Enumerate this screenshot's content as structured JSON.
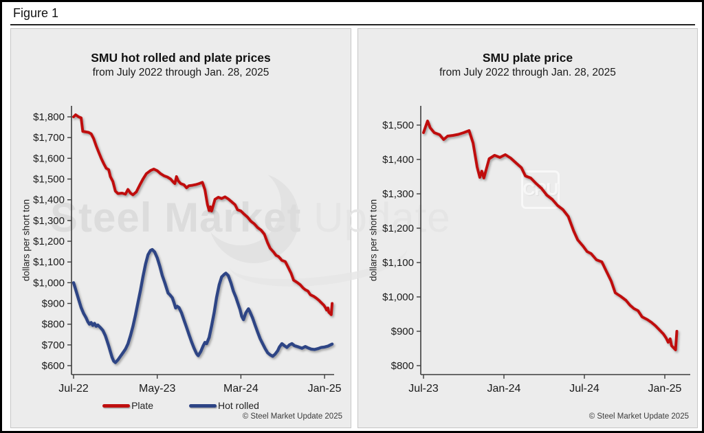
{
  "figure_label": "Figure 1",
  "watermark": {
    "text_primary": "Steel Market",
    "text_secondary": " Update",
    "badge": "CRU"
  },
  "colors": {
    "plate": "#bf0f0f",
    "hot_rolled": "#2d4485",
    "axis": "#3c3c3c",
    "panel_bg": "#ececec"
  },
  "chart_data": [
    {
      "type": "line",
      "title": "SMU hot rolled and plate prices",
      "subtitle": "from July 2022 through Jan. 28, 2025",
      "ylabel": "dollars per short ton",
      "copyright": "© Steel Market Update 2025",
      "x_unit": "months since Jul-2022",
      "x_tick_labels": [
        "Jul-22",
        "May-23",
        "Mar-24",
        "Jan-25"
      ],
      "x_tick_months": [
        0,
        10,
        20,
        30
      ],
      "ylim": [
        600,
        1800
      ],
      "y_tick_step": 100,
      "grid": false,
      "legend_position": "bottom",
      "series": [
        {
          "name": "Plate",
          "color": "#bf0f0f",
          "points": [
            [
              0,
              1800
            ],
            [
              0.25,
              1810
            ],
            [
              0.6,
              1800
            ],
            [
              0.9,
              1795
            ],
            [
              1.1,
              1730
            ],
            [
              1.8,
              1725
            ],
            [
              2.1,
              1718
            ],
            [
              2.4,
              1695
            ],
            [
              2.7,
              1660
            ],
            [
              3,
              1630
            ],
            [
              3.3,
              1600
            ],
            [
              3.6,
              1575
            ],
            [
              3.9,
              1552
            ],
            [
              4.2,
              1545
            ],
            [
              4.4,
              1512
            ],
            [
              4.7,
              1488
            ],
            [
              5,
              1442
            ],
            [
              5.3,
              1430
            ],
            [
              5.8,
              1432
            ],
            [
              6.2,
              1427
            ],
            [
              6.5,
              1450
            ],
            [
              6.8,
              1432
            ],
            [
              7.1,
              1424
            ],
            [
              7.5,
              1438
            ],
            [
              7.9,
              1470
            ],
            [
              8.3,
              1500
            ],
            [
              8.7,
              1526
            ],
            [
              9.2,
              1541
            ],
            [
              9.6,
              1548
            ],
            [
              10,
              1540
            ],
            [
              10.4,
              1526
            ],
            [
              10.8,
              1516
            ],
            [
              11.2,
              1510
            ],
            [
              11.6,
              1500
            ],
            [
              11.9,
              1486
            ],
            [
              12.1,
              1478
            ],
            [
              12.3,
              1512
            ],
            [
              12.5,
              1492
            ],
            [
              12.8,
              1478
            ],
            [
              13.2,
              1472
            ],
            [
              13.5,
              1458
            ],
            [
              13.8,
              1468
            ],
            [
              14.2,
              1470
            ],
            [
              14.6,
              1473
            ],
            [
              15,
              1478
            ],
            [
              15.4,
              1484
            ],
            [
              15.7,
              1448
            ],
            [
              16,
              1378
            ],
            [
              16.2,
              1348
            ],
            [
              16.35,
              1366
            ],
            [
              16.5,
              1346
            ],
            [
              16.9,
              1402
            ],
            [
              17.3,
              1412
            ],
            [
              17.7,
              1406
            ],
            [
              18.1,
              1414
            ],
            [
              18.5,
              1404
            ],
            [
              18.9,
              1390
            ],
            [
              19.3,
              1376
            ],
            [
              19.6,
              1352
            ],
            [
              20,
              1346
            ],
            [
              20.4,
              1330
            ],
            [
              20.8,
              1316
            ],
            [
              21.2,
              1296
            ],
            [
              21.6,
              1284
            ],
            [
              22,
              1266
            ],
            [
              22.4,
              1254
            ],
            [
              22.8,
              1234
            ],
            [
              23.2,
              1192
            ],
            [
              23.5,
              1166
            ],
            [
              23.9,
              1148
            ],
            [
              24.2,
              1132
            ],
            [
              24.5,
              1126
            ],
            [
              24.9,
              1108
            ],
            [
              25.3,
              1102
            ],
            [
              25.6,
              1078
            ],
            [
              26,
              1046
            ],
            [
              26.3,
              1012
            ],
            [
              26.7,
              1002
            ],
            [
              27.1,
              990
            ],
            [
              27.4,
              976
            ],
            [
              27.7,
              966
            ],
            [
              28,
              960
            ],
            [
              28.3,
              942
            ],
            [
              28.7,
              934
            ],
            [
              29,
              926
            ],
            [
              29.3,
              916
            ],
            [
              29.6,
              904
            ],
            [
              29.9,
              892
            ],
            [
              30.1,
              880
            ],
            [
              30.25,
              868
            ],
            [
              30.4,
              878
            ],
            [
              30.5,
              858
            ],
            [
              30.65,
              852
            ],
            [
              30.8,
              846
            ],
            [
              30.9,
              900
            ]
          ]
        },
        {
          "name": "Hot rolled",
          "color": "#2d4485",
          "points": [
            [
              0,
              1000
            ],
            [
              0.3,
              960
            ],
            [
              0.6,
              920
            ],
            [
              0.9,
              880
            ],
            [
              1.2,
              852
            ],
            [
              1.5,
              830
            ],
            [
              1.7,
              812
            ],
            [
              1.9,
              800
            ],
            [
              2.1,
              808
            ],
            [
              2.3,
              794
            ],
            [
              2.5,
              804
            ],
            [
              2.7,
              790
            ],
            [
              2.9,
              796
            ],
            [
              3.2,
              784
            ],
            [
              3.5,
              770
            ],
            [
              3.8,
              745
            ],
            [
              4,
              720
            ],
            [
              4.2,
              695
            ],
            [
              4.4,
              668
            ],
            [
              4.6,
              640
            ],
            [
              4.8,
              622
            ],
            [
              5,
              615
            ],
            [
              5.3,
              628
            ],
            [
              5.6,
              645
            ],
            [
              5.9,
              662
            ],
            [
              6.2,
              680
            ],
            [
              6.5,
              705
            ],
            [
              6.8,
              745
            ],
            [
              7.1,
              790
            ],
            [
              7.4,
              845
            ],
            [
              7.7,
              905
            ],
            [
              8,
              965
            ],
            [
              8.3,
              1030
            ],
            [
              8.6,
              1090
            ],
            [
              8.9,
              1135
            ],
            [
              9.2,
              1156
            ],
            [
              9.4,
              1160
            ],
            [
              9.7,
              1148
            ],
            [
              10,
              1120
            ],
            [
              10.3,
              1080
            ],
            [
              10.6,
              1035
            ],
            [
              10.9,
              1000
            ],
            [
              11.1,
              975
            ],
            [
              11.3,
              950
            ],
            [
              11.5,
              942
            ],
            [
              11.8,
              928
            ],
            [
              12,
              905
            ],
            [
              12.2,
              878
            ],
            [
              12.4,
              886
            ],
            [
              12.6,
              880
            ],
            [
              12.9,
              855
            ],
            [
              13.2,
              820
            ],
            [
              13.5,
              785
            ],
            [
              13.8,
              750
            ],
            [
              14.1,
              715
            ],
            [
              14.4,
              685
            ],
            [
              14.7,
              658
            ],
            [
              14.9,
              648
            ],
            [
              15.2,
              668
            ],
            [
              15.5,
              696
            ],
            [
              15.7,
              712
            ],
            [
              15.9,
              706
            ],
            [
              16.2,
              736
            ],
            [
              16.5,
              792
            ],
            [
              16.8,
              856
            ],
            [
              17.1,
              930
            ],
            [
              17.4,
              990
            ],
            [
              17.7,
              1028
            ],
            [
              18,
              1040
            ],
            [
              18.2,
              1046
            ],
            [
              18.5,
              1034
            ],
            [
              18.8,
              1000
            ],
            [
              19.1,
              960
            ],
            [
              19.4,
              930
            ],
            [
              19.6,
              906
            ],
            [
              19.9,
              870
            ],
            [
              20.1,
              838
            ],
            [
              20.3,
              822
            ],
            [
              20.6,
              856
            ],
            [
              20.9,
              874
            ],
            [
              21.1,
              858
            ],
            [
              21.4,
              830
            ],
            [
              21.7,
              795
            ],
            [
              22,
              762
            ],
            [
              22.3,
              730
            ],
            [
              22.6,
              706
            ],
            [
              22.9,
              682
            ],
            [
              23.2,
              662
            ],
            [
              23.5,
              652
            ],
            [
              23.8,
              645
            ],
            [
              24.1,
              656
            ],
            [
              24.4,
              672
            ],
            [
              24.6,
              690
            ],
            [
              24.9,
              706
            ],
            [
              25.2,
              696
            ],
            [
              25.5,
              688
            ],
            [
              25.8,
              700
            ],
            [
              26.1,
              706
            ],
            [
              26.4,
              696
            ],
            [
              26.9,
              690
            ],
            [
              27.3,
              684
            ],
            [
              27.7,
              692
            ],
            [
              28,
              686
            ],
            [
              28.4,
              680
            ],
            [
              28.8,
              678
            ],
            [
              29.2,
              682
            ],
            [
              29.6,
              688
            ],
            [
              30,
              690
            ],
            [
              30.4,
              694
            ],
            [
              30.9,
              704
            ]
          ]
        }
      ]
    },
    {
      "type": "line",
      "title": "SMU plate price",
      "subtitle": "from July 2022 through Jan. 28, 2025",
      "ylabel": "dollars per short ton",
      "copyright": "© Steel Market Update 2025",
      "x_unit": "months since Jul-2022",
      "x_tick_labels": [
        "Jul-23",
        "Jan-24",
        "Jul-24",
        "Jan-25"
      ],
      "x_tick_months": [
        12,
        18,
        24,
        30
      ],
      "ylim": [
        800,
        1500
      ],
      "y_tick_step": 100,
      "grid": false,
      "legend_position": "none",
      "series": [
        {
          "name": "Plate",
          "color": "#bf0f0f",
          "points": [
            [
              12,
              1478
            ],
            [
              12.3,
              1512
            ],
            [
              12.5,
              1492
            ],
            [
              12.8,
              1478
            ],
            [
              13.2,
              1472
            ],
            [
              13.5,
              1458
            ],
            [
              13.8,
              1468
            ],
            [
              14.2,
              1470
            ],
            [
              14.6,
              1473
            ],
            [
              15,
              1478
            ],
            [
              15.4,
              1484
            ],
            [
              15.7,
              1448
            ],
            [
              16,
              1378
            ],
            [
              16.2,
              1348
            ],
            [
              16.35,
              1366
            ],
            [
              16.5,
              1346
            ],
            [
              16.9,
              1402
            ],
            [
              17.3,
              1412
            ],
            [
              17.7,
              1406
            ],
            [
              18.1,
              1414
            ],
            [
              18.5,
              1404
            ],
            [
              18.9,
              1390
            ],
            [
              19.3,
              1376
            ],
            [
              19.6,
              1352
            ],
            [
              20,
              1346
            ],
            [
              20.4,
              1330
            ],
            [
              20.8,
              1316
            ],
            [
              21.2,
              1296
            ],
            [
              21.6,
              1284
            ],
            [
              22,
              1266
            ],
            [
              22.4,
              1254
            ],
            [
              22.8,
              1234
            ],
            [
              23.2,
              1192
            ],
            [
              23.5,
              1166
            ],
            [
              23.9,
              1148
            ],
            [
              24.2,
              1132
            ],
            [
              24.5,
              1126
            ],
            [
              24.9,
              1108
            ],
            [
              25.3,
              1102
            ],
            [
              25.6,
              1078
            ],
            [
              26,
              1046
            ],
            [
              26.3,
              1012
            ],
            [
              26.7,
              1002
            ],
            [
              27.1,
              990
            ],
            [
              27.4,
              976
            ],
            [
              27.7,
              966
            ],
            [
              28,
              960
            ],
            [
              28.3,
              942
            ],
            [
              28.7,
              934
            ],
            [
              29,
              926
            ],
            [
              29.3,
              916
            ],
            [
              29.6,
              904
            ],
            [
              29.9,
              892
            ],
            [
              30.1,
              880
            ],
            [
              30.25,
              868
            ],
            [
              30.4,
              878
            ],
            [
              30.5,
              858
            ],
            [
              30.65,
              852
            ],
            [
              30.8,
              846
            ],
            [
              30.9,
              900
            ]
          ]
        }
      ]
    }
  ]
}
